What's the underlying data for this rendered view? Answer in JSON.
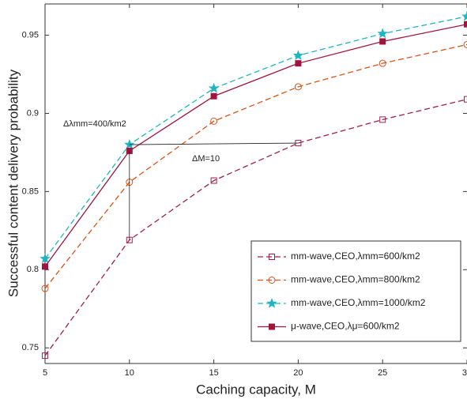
{
  "chart_data": {
    "type": "line",
    "xlabel": "Caching capacity, M",
    "ylabel": "Successful content delivery probability",
    "x": [
      5,
      10,
      15,
      20,
      25,
      30
    ],
    "xlim": [
      5,
      30
    ],
    "xticks": [
      5,
      10,
      15,
      20,
      25,
      30
    ],
    "ylim": [
      0.74,
      0.97
    ],
    "yticks": [
      0.75,
      0.8,
      0.85,
      0.9,
      0.95
    ],
    "series": [
      {
        "name": "mm-wave,CEO,λmm=600/km2",
        "color": "#a0204a",
        "dashed": true,
        "marker": "square-open",
        "values": [
          0.745,
          0.819,
          0.857,
          0.881,
          0.896,
          0.909
        ]
      },
      {
        "name": "mm-wave,CEO,λmm=800/km2",
        "color": "#d95319",
        "dashed": true,
        "marker": "circle-open",
        "values": [
          0.788,
          0.856,
          0.895,
          0.917,
          0.932,
          0.944
        ]
      },
      {
        "name": "mm-wave,CEO,λmm=1000/km2",
        "color": "#1fb5c0",
        "dashed": true,
        "marker": "star",
        "values": [
          0.807,
          0.88,
          0.916,
          0.937,
          0.951,
          0.962
        ]
      },
      {
        "name": "μ-wave,CEO,λμ=600/km2",
        "color": "#a0153e",
        "dashed": false,
        "marker": "square-filled",
        "values": [
          0.802,
          0.876,
          0.911,
          0.932,
          0.946,
          0.957
        ]
      }
    ],
    "annotations": [
      "Δλmm=400/km2",
      "ΔM=10"
    ],
    "legend": "lower right"
  }
}
